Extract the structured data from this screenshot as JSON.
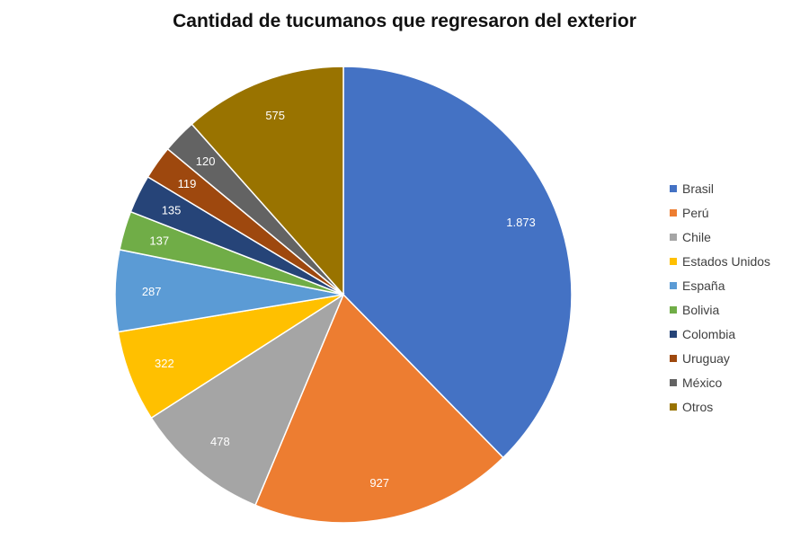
{
  "chart_data": {
    "type": "pie",
    "title": "Cantidad de tucumanos que regresaron del exterior",
    "categories": [
      "Brasil",
      "Perú",
      "Chile",
      "Estados Unidos",
      "España",
      "Bolivia",
      "Colombia",
      "Uruguay",
      "México",
      "Otros"
    ],
    "values": [
      1873,
      927,
      478,
      322,
      287,
      137,
      135,
      119,
      120,
      575
    ],
    "value_labels": [
      "1.873",
      "927",
      "478",
      "322",
      "287",
      "137",
      "135",
      "119",
      "120",
      "575"
    ],
    "colors": [
      "#4472C4",
      "#ED7D31",
      "#A5A5A5",
      "#FFC000",
      "#5B9BD5",
      "#70AD47",
      "#264478",
      "#9E480E",
      "#636363",
      "#997300"
    ],
    "legend_position": "right",
    "start": "top",
    "direction": "clockwise"
  }
}
